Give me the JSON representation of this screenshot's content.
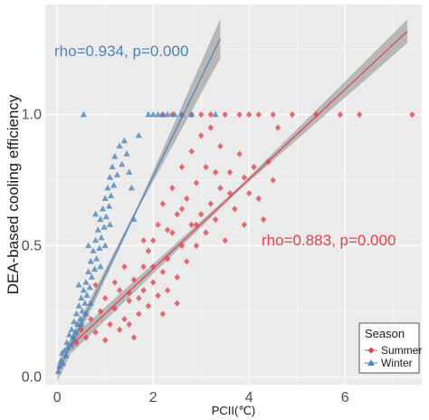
{
  "chart_data": {
    "type": "scatter",
    "xlabel": "PCII(℃)",
    "ylabel": "DEA-based cooling efficiency",
    "xlim": [
      -0.25,
      7.6
    ],
    "ylim": [
      -0.03,
      1.42
    ],
    "x_ticks": [
      "0",
      "2",
      "4",
      "6"
    ],
    "y_ticks": [
      "0.0",
      "0.5",
      "1.0"
    ],
    "x_tick_values": [
      0,
      2,
      4,
      6
    ],
    "y_tick_values": [
      0,
      0.5,
      1.0
    ],
    "grid": true,
    "legend_title": "Season",
    "legend_position": "bottom-right",
    "series": [
      {
        "name": "Summer",
        "color": "#e0434b",
        "marker": "diamond",
        "fit": {
          "x_range": [
            0.3,
            7.3
          ],
          "intercept": 0.07,
          "slope": 0.171,
          "ci_halfwidth": [
            0.03,
            0.007,
            0.045
          ]
        },
        "annotation": "rho=0.883, p=0.000",
        "points": [
          [
            0.4,
            0.13
          ],
          [
            0.5,
            0.18
          ],
          [
            0.6,
            0.15
          ],
          [
            0.7,
            0.22
          ],
          [
            0.8,
            0.17
          ],
          [
            0.9,
            0.25
          ],
          [
            1.0,
            0.14
          ],
          [
            1.0,
            0.3
          ],
          [
            1.1,
            0.2
          ],
          [
            1.2,
            0.26
          ],
          [
            1.3,
            0.18
          ],
          [
            1.3,
            0.33
          ],
          [
            1.4,
            0.22
          ],
          [
            1.5,
            0.29
          ],
          [
            1.5,
            0.2
          ],
          [
            1.6,
            0.37
          ],
          [
            1.7,
            0.24
          ],
          [
            1.7,
            0.3
          ],
          [
            1.8,
            0.42
          ],
          [
            1.8,
            0.33
          ],
          [
            1.9,
            0.27
          ],
          [
            1.9,
            0.48
          ],
          [
            2.0,
            0.36
          ],
          [
            2.0,
            0.52
          ],
          [
            2.1,
            0.31
          ],
          [
            2.1,
            0.58
          ],
          [
            2.2,
            0.4
          ],
          [
            2.2,
            0.66
          ],
          [
            2.3,
            0.45
          ],
          [
            2.3,
            0.33
          ],
          [
            2.4,
            0.55
          ],
          [
            2.4,
            0.72
          ],
          [
            2.5,
            0.38
          ],
          [
            2.5,
            0.62
          ],
          [
            2.6,
            0.5
          ],
          [
            2.6,
            0.8
          ],
          [
            2.7,
            0.44
          ],
          [
            2.7,
            0.68
          ],
          [
            2.8,
            0.58
          ],
          [
            2.8,
            0.86
          ],
          [
            2.9,
            0.5
          ],
          [
            2.9,
            0.74
          ],
          [
            3.0,
            0.62
          ],
          [
            3.0,
            0.92
          ],
          [
            3.1,
            0.55
          ],
          [
            3.1,
            0.8
          ],
          [
            3.2,
            0.66
          ],
          [
            3.2,
            0.95
          ],
          [
            3.3,
            0.6
          ],
          [
            3.4,
            0.72
          ],
          [
            3.4,
            0.88
          ],
          [
            3.5,
            0.52
          ],
          [
            3.6,
            0.78
          ],
          [
            3.7,
            0.64
          ],
          [
            3.8,
            0.85
          ],
          [
            3.9,
            0.58
          ],
          [
            4.0,
            0.7
          ],
          [
            4.1,
            0.8
          ],
          [
            4.2,
            0.68
          ],
          [
            4.3,
            0.6
          ],
          [
            4.5,
            0.75
          ],
          [
            4.6,
            0.95
          ],
          [
            2.2,
            1.0
          ],
          [
            2.4,
            1.0
          ],
          [
            2.6,
            1.0
          ],
          [
            2.8,
            1.0
          ],
          [
            3.0,
            1.0
          ],
          [
            3.2,
            1.0
          ],
          [
            3.5,
            1.0
          ],
          [
            3.8,
            1.0
          ],
          [
            4.0,
            1.0
          ],
          [
            4.2,
            1.0
          ],
          [
            4.5,
            1.0
          ],
          [
            4.9,
            1.0
          ],
          [
            5.4,
            1.0
          ],
          [
            5.9,
            1.0
          ],
          [
            6.3,
            1.0
          ],
          [
            7.4,
            1.0
          ],
          [
            1.5,
            0.32
          ],
          [
            1.8,
            0.52
          ],
          [
            2.0,
            0.42
          ],
          [
            2.3,
            0.56
          ],
          [
            2.6,
            0.64
          ],
          [
            2.9,
            0.58
          ],
          [
            3.3,
            0.78
          ],
          [
            3.6,
            0.7
          ],
          [
            3.9,
            0.76
          ],
          [
            4.4,
            0.82
          ],
          [
            1.2,
            0.36
          ],
          [
            1.4,
            0.42
          ],
          [
            2.2,
            0.24
          ],
          [
            2.5,
            0.28
          ],
          [
            1.6,
            0.15
          ],
          [
            0.8,
            0.35
          ]
        ]
      },
      {
        "name": "Winter",
        "color": "#4a84bb",
        "marker": "triangle",
        "fit": {
          "x_range": [
            0.0,
            3.4
          ],
          "intercept": 0.015,
          "slope": 0.375,
          "ci_halfwidth": [
            0.035,
            0.008,
            0.075
          ]
        },
        "annotation": "rho=0.934, p=0.000",
        "points": [
          [
            0.02,
            0.02
          ],
          [
            0.05,
            0.04
          ],
          [
            0.08,
            0.06
          ],
          [
            0.1,
            0.09
          ],
          [
            0.12,
            0.05
          ],
          [
            0.15,
            0.1
          ],
          [
            0.18,
            0.08
          ],
          [
            0.2,
            0.13
          ],
          [
            0.22,
            0.11
          ],
          [
            0.25,
            0.16
          ],
          [
            0.28,
            0.12
          ],
          [
            0.3,
            0.18
          ],
          [
            0.33,
            0.15
          ],
          [
            0.35,
            0.21
          ],
          [
            0.38,
            0.17
          ],
          [
            0.4,
            0.24
          ],
          [
            0.42,
            0.2
          ],
          [
            0.45,
            0.27
          ],
          [
            0.48,
            0.22
          ],
          [
            0.5,
            0.3
          ],
          [
            0.52,
            0.25
          ],
          [
            0.55,
            0.33
          ],
          [
            0.58,
            0.28
          ],
          [
            0.6,
            0.36
          ],
          [
            0.62,
            0.31
          ],
          [
            0.65,
            0.4
          ],
          [
            0.68,
            0.34
          ],
          [
            0.7,
            0.44
          ],
          [
            0.72,
            0.38
          ],
          [
            0.75,
            0.48
          ],
          [
            0.78,
            0.41
          ],
          [
            0.8,
            0.52
          ],
          [
            0.82,
            0.45
          ],
          [
            0.85,
            0.56
          ],
          [
            0.88,
            0.49
          ],
          [
            0.9,
            0.6
          ],
          [
            0.92,
            0.53
          ],
          [
            0.95,
            0.64
          ],
          [
            0.98,
            0.57
          ],
          [
            1.0,
            0.68
          ],
          [
            1.02,
            0.61
          ],
          [
            1.05,
            0.72
          ],
          [
            1.08,
            0.65
          ],
          [
            1.1,
            0.76
          ],
          [
            1.12,
            0.69
          ],
          [
            1.15,
            0.8
          ],
          [
            1.18,
            0.73
          ],
          [
            1.2,
            0.84
          ],
          [
            1.25,
            0.77
          ],
          [
            1.3,
            0.88
          ],
          [
            1.35,
            0.81
          ],
          [
            1.4,
            0.9
          ],
          [
            1.45,
            0.85
          ],
          [
            1.5,
            0.78
          ],
          [
            1.55,
            0.72
          ],
          [
            0.6,
            0.24
          ],
          [
            0.7,
            0.28
          ],
          [
            0.9,
            0.42
          ],
          [
            1.0,
            0.5
          ],
          [
            1.1,
            0.58
          ],
          [
            0.5,
            0.2
          ],
          [
            0.35,
            0.14
          ],
          [
            0.45,
            0.35
          ],
          [
            0.8,
            0.62
          ],
          [
            0.65,
            0.5
          ],
          [
            0.55,
            1.0
          ],
          [
            1.9,
            1.0
          ],
          [
            2.0,
            1.0
          ],
          [
            2.1,
            1.0
          ],
          [
            2.2,
            1.0
          ],
          [
            2.3,
            1.0
          ],
          [
            2.45,
            1.0
          ],
          [
            2.6,
            1.0
          ],
          [
            2.8,
            1.0
          ],
          [
            3.3,
            1.0
          ],
          [
            1.7,
            0.92
          ],
          [
            1.6,
            0.6
          ]
        ]
      }
    ]
  }
}
